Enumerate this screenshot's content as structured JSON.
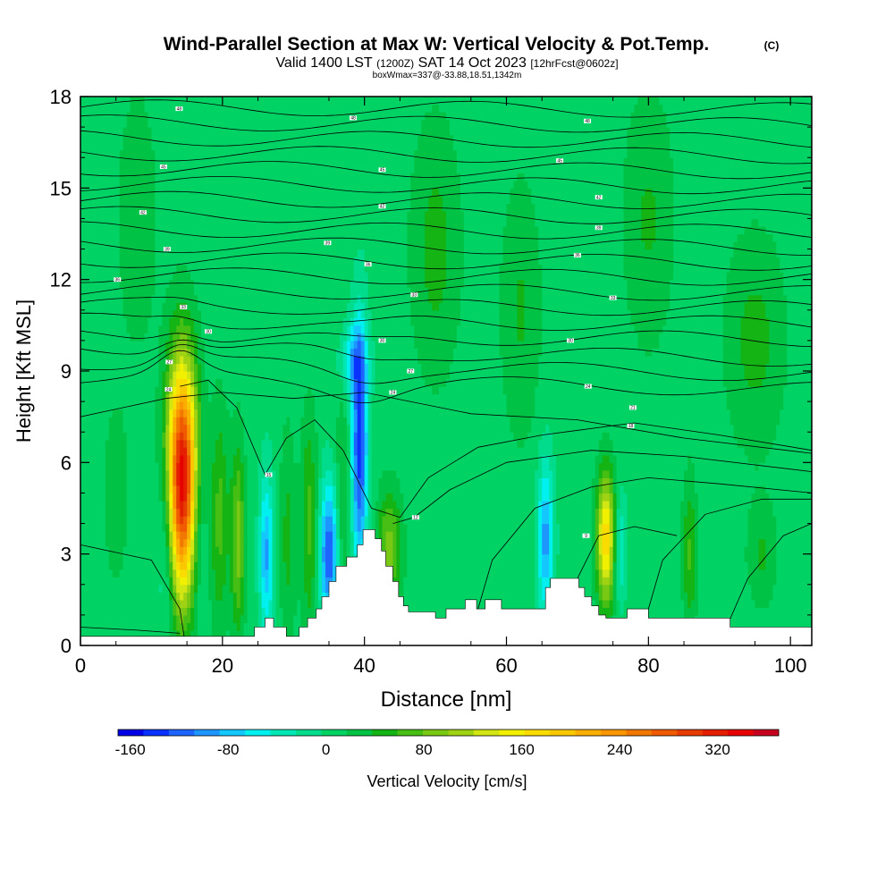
{
  "header": {
    "title": "Wind-Parallel Section at Max W: Vertical Velocity & Pot.Temp.",
    "copyright": "(C)",
    "valid_prefix": "Valid 1400 LST",
    "valid_utc": "(1200Z)",
    "valid_date": "SAT 14 Oct 2023",
    "forecast": "[12hrFcst@0602z]",
    "box_info": "boxWmax=337@-33.88,18.51,1342m"
  },
  "chart_data": {
    "type": "heatmap",
    "title": "Wind-Parallel Section at Max W: Vertical Velocity & Pot.Temp.",
    "xlabel": "Distance [nm]",
    "ylabel": "Height [Kft MSL]",
    "xlim": [
      0,
      103
    ],
    "ylim": [
      0,
      18
    ],
    "x_ticks": [
      0,
      20,
      40,
      60,
      80,
      100
    ],
    "y_ticks": [
      0,
      3,
      6,
      9,
      12,
      15,
      18
    ],
    "colorbar": {
      "label": "Vertical Velocity [cm/s]",
      "range": [
        -170,
        370
      ],
      "ticks": [
        -160,
        -80,
        0,
        80,
        160,
        240,
        320
      ],
      "colors": [
        "#0000e6",
        "#0a32ff",
        "#1e64ff",
        "#1e96ff",
        "#14c8ff",
        "#00f0f0",
        "#00e6b4",
        "#00dc8c",
        "#00d264",
        "#00c346",
        "#14b414",
        "#46be14",
        "#78c814",
        "#a0d214",
        "#d2e614",
        "#f0f000",
        "#fadc00",
        "#fac800",
        "#faaf00",
        "#fa9600",
        "#f07800",
        "#f05a00",
        "#e63c00",
        "#e61e00",
        "#e60000",
        "#c80020"
      ]
    },
    "background_w": 5,
    "w_features": [
      {
        "x": 14.3,
        "z": 5.5,
        "w": 337,
        "sx": 1.5,
        "sz": 2.7
      },
      {
        "x": 12.2,
        "z": 3.5,
        "w": -60,
        "sx": 0.9,
        "sz": 2.2
      },
      {
        "x": 16.6,
        "z": 4.0,
        "w": -45,
        "sx": 0.8,
        "sz": 2.0
      },
      {
        "x": 19.6,
        "z": 4.2,
        "w": 60,
        "sx": 0.9,
        "sz": 2.5
      },
      {
        "x": 22.2,
        "z": 3.5,
        "w": 85,
        "sx": 0.7,
        "sz": 2.2
      },
      {
        "x": 26.2,
        "z": 3.0,
        "w": -95,
        "sx": 0.7,
        "sz": 1.8
      },
      {
        "x": 29.2,
        "z": 3.5,
        "w": 40,
        "sx": 0.8,
        "sz": 2.5
      },
      {
        "x": 32.2,
        "z": 4.0,
        "w": 60,
        "sx": 0.8,
        "sz": 2.5
      },
      {
        "x": 35.0,
        "z": 3.0,
        "w": -135,
        "sx": 0.9,
        "sz": 1.6
      },
      {
        "x": 37.0,
        "z": 5.0,
        "w": 40,
        "sx": 0.7,
        "sz": 2.5
      },
      {
        "x": 39.3,
        "z": 6.5,
        "w": -145,
        "sx": 0.8,
        "sz": 2.8
      },
      {
        "x": 43.5,
        "z": 3.2,
        "w": 85,
        "sx": 1.2,
        "sz": 1.3
      },
      {
        "x": 38.5,
        "z": 9.3,
        "w": -70,
        "sx": 1.3,
        "sz": 0.8
      },
      {
        "x": 65.5,
        "z": 3.5,
        "w": -100,
        "sx": 0.8,
        "sz": 1.8
      },
      {
        "x": 74.0,
        "z": 3.5,
        "w": 175,
        "sx": 0.9,
        "sz": 1.5
      },
      {
        "x": 76.0,
        "z": 3.2,
        "w": -60,
        "sx": 0.6,
        "sz": 1.2
      },
      {
        "x": 85.8,
        "z": 3.0,
        "w": 55,
        "sx": 0.7,
        "sz": 1.8
      },
      {
        "x": 96.0,
        "z": 3.0,
        "w": 35,
        "sx": 1.5,
        "sz": 1.2
      },
      {
        "x": 5.0,
        "z": 5.0,
        "w": 30,
        "sx": 1.2,
        "sz": 2.0
      },
      {
        "x": 50.0,
        "z": 13.0,
        "w": 40,
        "sx": 2.5,
        "sz": 3.0
      },
      {
        "x": 62.0,
        "z": 11.0,
        "w": 35,
        "sx": 2.0,
        "sz": 3.0
      },
      {
        "x": 80.0,
        "z": 14.0,
        "w": 35,
        "sx": 2.5,
        "sz": 3.0
      },
      {
        "x": 95.0,
        "z": 10.0,
        "w": 40,
        "sx": 3.0,
        "sz": 2.5
      },
      {
        "x": 8.0,
        "z": 14.0,
        "w": 30,
        "sx": 2.0,
        "sz": 3.0
      }
    ],
    "terrain": [
      [
        0,
        0.3
      ],
      [
        24.5,
        0.3
      ],
      [
        24.5,
        0.6
      ],
      [
        26.0,
        0.6
      ],
      [
        26.0,
        0.9
      ],
      [
        27.2,
        0.9
      ],
      [
        27.2,
        0.6
      ],
      [
        29.0,
        0.6
      ],
      [
        29.0,
        0.3
      ],
      [
        30.8,
        0.3
      ],
      [
        30.8,
        0.6
      ],
      [
        32.0,
        0.6
      ],
      [
        32.0,
        0.9
      ],
      [
        33.2,
        0.9
      ],
      [
        33.2,
        1.2
      ],
      [
        34.0,
        1.2
      ],
      [
        34.0,
        1.6
      ],
      [
        35.0,
        1.6
      ],
      [
        35.0,
        2.1
      ],
      [
        36.0,
        2.1
      ],
      [
        36.0,
        2.6
      ],
      [
        37.5,
        2.6
      ],
      [
        37.5,
        2.9
      ],
      [
        39.0,
        2.9
      ],
      [
        39.0,
        3.3
      ],
      [
        39.8,
        3.3
      ],
      [
        39.8,
        3.8
      ],
      [
        41.5,
        3.8
      ],
      [
        41.5,
        3.5
      ],
      [
        42.4,
        3.5
      ],
      [
        42.4,
        3.1
      ],
      [
        43.0,
        3.1
      ],
      [
        43.0,
        2.6
      ],
      [
        44.0,
        2.6
      ],
      [
        44.0,
        2.1
      ],
      [
        44.8,
        2.1
      ],
      [
        44.8,
        1.6
      ],
      [
        45.5,
        1.6
      ],
      [
        45.5,
        1.3
      ],
      [
        46.2,
        1.3
      ],
      [
        46.2,
        1.1
      ],
      [
        50.0,
        1.1
      ],
      [
        50.0,
        0.9
      ],
      [
        51.5,
        0.9
      ],
      [
        51.5,
        1.2
      ],
      [
        54.2,
        1.2
      ],
      [
        54.2,
        1.5
      ],
      [
        55.8,
        1.5
      ],
      [
        55.8,
        1.2
      ],
      [
        57.0,
        1.2
      ],
      [
        57.0,
        1.5
      ],
      [
        59.3,
        1.5
      ],
      [
        59.3,
        1.2
      ],
      [
        65.5,
        1.2
      ],
      [
        65.5,
        1.9
      ],
      [
        66.2,
        1.9
      ],
      [
        66.2,
        2.2
      ],
      [
        70.2,
        2.2
      ],
      [
        70.2,
        1.9
      ],
      [
        71.0,
        1.9
      ],
      [
        71.0,
        1.6
      ],
      [
        72.0,
        1.6
      ],
      [
        72.0,
        1.3
      ],
      [
        73.0,
        1.3
      ],
      [
        73.0,
        1.0
      ],
      [
        74.0,
        1.0
      ],
      [
        74.0,
        0.9
      ],
      [
        77.0,
        0.9
      ],
      [
        77.0,
        1.2
      ],
      [
        80.0,
        1.2
      ],
      [
        80.0,
        0.9
      ],
      [
        91.5,
        0.9
      ],
      [
        91.5,
        0.6
      ],
      [
        103,
        0.6
      ]
    ],
    "theta_contour_labels": [
      {
        "x": 13.9,
        "z": 17.6,
        "label": "48"
      },
      {
        "x": 38.4,
        "z": 17.3,
        "label": "48"
      },
      {
        "x": 71.4,
        "z": 17.2,
        "label": "48"
      },
      {
        "x": 11.7,
        "z": 15.7,
        "label": "45"
      },
      {
        "x": 42.5,
        "z": 15.6,
        "label": "45"
      },
      {
        "x": 67.5,
        "z": 15.9,
        "label": "45"
      },
      {
        "x": 8.8,
        "z": 14.2,
        "label": "42"
      },
      {
        "x": 42.5,
        "z": 14.4,
        "label": "42"
      },
      {
        "x": 73.0,
        "z": 14.7,
        "label": "42"
      },
      {
        "x": 12.2,
        "z": 13.0,
        "label": "39"
      },
      {
        "x": 34.8,
        "z": 13.2,
        "label": "39"
      },
      {
        "x": 73.0,
        "z": 13.7,
        "label": "39"
      },
      {
        "x": 5.2,
        "z": 12.0,
        "label": "36"
      },
      {
        "x": 40.5,
        "z": 12.5,
        "label": "36"
      },
      {
        "x": 70.0,
        "z": 12.8,
        "label": "36"
      },
      {
        "x": 14.5,
        "z": 11.1,
        "label": "33"
      },
      {
        "x": 47.0,
        "z": 11.5,
        "label": "33"
      },
      {
        "x": 75.0,
        "z": 11.4,
        "label": "33"
      },
      {
        "x": 18.0,
        "z": 10.3,
        "label": "30"
      },
      {
        "x": 42.5,
        "z": 10.0,
        "label": "30"
      },
      {
        "x": 69.0,
        "z": 10.0,
        "label": "30"
      },
      {
        "x": 12.5,
        "z": 9.3,
        "label": "27"
      },
      {
        "x": 46.5,
        "z": 9.0,
        "label": "27"
      },
      {
        "x": 12.4,
        "z": 8.4,
        "label": "24"
      },
      {
        "x": 44.0,
        "z": 8.3,
        "label": "24"
      },
      {
        "x": 71.5,
        "z": 8.5,
        "label": "24"
      },
      {
        "x": 77.8,
        "z": 7.8,
        "label": "21"
      },
      {
        "x": 77.5,
        "z": 7.2,
        "label": "18"
      },
      {
        "x": 26.5,
        "z": 5.6,
        "label": "15"
      },
      {
        "x": 47.2,
        "z": 4.2,
        "label": "12"
      },
      {
        "x": 71.2,
        "z": 3.6,
        "label": "9"
      }
    ]
  }
}
